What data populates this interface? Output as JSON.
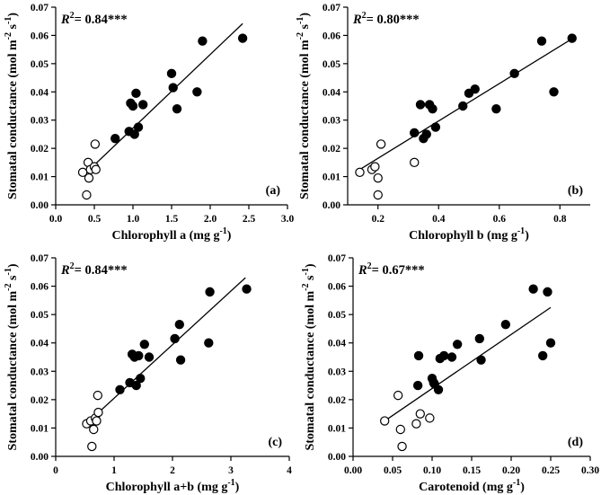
{
  "chart_data": [
    {
      "type": "scatter",
      "panel_label": "(a)",
      "r2_label": "R",
      "r2_value": "= 0.84***",
      "xlabel": "Chlorophyll a (mg g",
      "xlabel_exp": "-1",
      "xlabel_end": ")",
      "ylabel": "Stomatal conductance (mol m",
      "ylabel_exp1": "-2",
      "ylabel_mid": " s",
      "ylabel_exp2": "-1",
      "ylabel_end": ")",
      "xlim": [
        0,
        3.0
      ],
      "ylim": [
        0,
        0.07
      ],
      "xticks": [
        "0.0",
        "0.5",
        "1.0",
        "1.5",
        "2.0",
        "2.5",
        "3.0"
      ],
      "yticks": [
        "0.00",
        "0.01",
        "0.02",
        "0.03",
        "0.04",
        "0.05",
        "0.06",
        "0.07"
      ],
      "fit": [
        [
          0.4,
          0.0115
        ],
        [
          2.42,
          0.0642
        ]
      ],
      "series": [
        {
          "marker": "filled",
          "x": [
            0.77,
            0.95,
            0.97,
            1.0,
            1.02,
            1.04,
            1.07,
            1.13,
            1.5,
            1.52,
            1.57,
            1.83,
            1.9,
            2.42
          ],
          "y": [
            0.0235,
            0.026,
            0.036,
            0.035,
            0.025,
            0.0395,
            0.0275,
            0.0355,
            0.0465,
            0.0415,
            0.034,
            0.04,
            0.058,
            0.059
          ]
        },
        {
          "marker": "open",
          "x": [
            0.35,
            0.4,
            0.42,
            0.43,
            0.45,
            0.5,
            0.52,
            0.51
          ],
          "y": [
            0.0115,
            0.0035,
            0.015,
            0.0095,
            0.0125,
            0.0135,
            0.0125,
            0.0215
          ]
        }
      ]
    },
    {
      "type": "scatter",
      "panel_label": "(b)",
      "r2_label": "R",
      "r2_value": "= 0.80***",
      "xlabel": "Chlorophyll b (mg g",
      "xlabel_exp": "-1",
      "xlabel_end": ")",
      "ylabel": "Stomatal conductance (mol m",
      "ylabel_exp1": "-2",
      "ylabel_mid": " s",
      "ylabel_exp2": "-1",
      "ylabel_end": ")",
      "xlim": [
        0.1,
        0.9
      ],
      "ylim": [
        0,
        0.07
      ],
      "xticks": [
        "0.2",
        "0.4",
        "0.6",
        "0.8"
      ],
      "xtick_values": [
        0.2,
        0.4,
        0.6,
        0.8
      ],
      "yticks": [
        "0.00",
        "0.01",
        "0.02",
        "0.03",
        "0.04",
        "0.05",
        "0.06",
        "0.07"
      ],
      "fit": [
        [
          0.14,
          0.0125
        ],
        [
          0.84,
          0.0588
        ]
      ],
      "series": [
        {
          "marker": "filled",
          "x": [
            0.32,
            0.34,
            0.35,
            0.36,
            0.37,
            0.38,
            0.39,
            0.48,
            0.5,
            0.52,
            0.59,
            0.65,
            0.74,
            0.78,
            0.84
          ],
          "y": [
            0.0255,
            0.0355,
            0.0235,
            0.025,
            0.0355,
            0.034,
            0.0275,
            0.035,
            0.0395,
            0.041,
            0.034,
            0.0465,
            0.058,
            0.04,
            0.059
          ]
        },
        {
          "marker": "open",
          "x": [
            0.14,
            0.18,
            0.19,
            0.2,
            0.21,
            0.32,
            0.2
          ],
          "y": [
            0.0115,
            0.0125,
            0.0135,
            0.0095,
            0.0215,
            0.015,
            0.0035
          ]
        }
      ]
    },
    {
      "type": "scatter",
      "panel_label": "(c)",
      "r2_label": "R",
      "r2_value": "= 0.84***",
      "xlabel": "Chlorophyll a+b (mg g",
      "xlabel_exp": "-1",
      "xlabel_end": ")",
      "ylabel": "Stomatal conductance (mol m",
      "ylabel_exp1": "-2",
      "ylabel_mid": " s",
      "ylabel_exp2": "-1",
      "ylabel_end": ")",
      "xlim": [
        0,
        4
      ],
      "ylim": [
        0,
        0.07
      ],
      "xticks": [
        "0",
        "1",
        "2",
        "3",
        "4"
      ],
      "yticks": [
        "0.00",
        "0.01",
        "0.02",
        "0.03",
        "0.04",
        "0.05",
        "0.06",
        "0.07"
      ],
      "fit": [
        [
          0.55,
          0.012
        ],
        [
          3.25,
          0.063
        ]
      ],
      "series": [
        {
          "marker": "filled",
          "x": [
            1.1,
            1.27,
            1.31,
            1.35,
            1.38,
            1.42,
            1.45,
            1.52,
            1.6,
            2.04,
            2.12,
            2.14,
            2.62,
            2.64,
            3.27
          ],
          "y": [
            0.0235,
            0.026,
            0.036,
            0.035,
            0.025,
            0.0355,
            0.0275,
            0.0395,
            0.035,
            0.0415,
            0.0465,
            0.034,
            0.04,
            0.058,
            0.059
          ]
        },
        {
          "marker": "open",
          "x": [
            0.53,
            0.6,
            0.65,
            0.68,
            0.7,
            0.73,
            0.62,
            0.72
          ],
          "y": [
            0.0115,
            0.0125,
            0.0095,
            0.0135,
            0.0125,
            0.0155,
            0.0035,
            0.0215
          ]
        }
      ]
    },
    {
      "type": "scatter",
      "panel_label": "(d)",
      "r2_label": "R",
      "r2_value": "= 0.67***",
      "xlabel": "Carotenoid (mg g",
      "xlabel_exp": "-1",
      "xlabel_end": ")",
      "ylabel": "Stomatal conductance (mol m",
      "ylabel_exp1": "-2",
      "ylabel_mid": " s",
      "ylabel_exp2": "-1",
      "ylabel_end": ")",
      "xlim": [
        0,
        0.3
      ],
      "ylim": [
        0,
        0.07
      ],
      "xticks": [
        "0.00",
        "0.05",
        "0.10",
        "0.15",
        "0.20",
        "0.25",
        "0.30"
      ],
      "yticks": [
        "0.00",
        "0.01",
        "0.02",
        "0.03",
        "0.04",
        "0.05",
        "0.06",
        "0.07"
      ],
      "fit": [
        [
          0.04,
          0.0125
        ],
        [
          0.25,
          0.0525
        ]
      ],
      "series": [
        {
          "marker": "filled",
          "x": [
            0.082,
            0.083,
            0.1,
            0.102,
            0.103,
            0.108,
            0.11,
            0.115,
            0.125,
            0.132,
            0.16,
            0.162,
            0.193,
            0.228,
            0.24,
            0.246,
            0.25
          ],
          "y": [
            0.025,
            0.0355,
            0.0275,
            0.026,
            0.0255,
            0.0235,
            0.0345,
            0.0355,
            0.035,
            0.0395,
            0.0415,
            0.034,
            0.0465,
            0.059,
            0.0355,
            0.058,
            0.04
          ]
        },
        {
          "marker": "open",
          "x": [
            0.04,
            0.057,
            0.06,
            0.062,
            0.08,
            0.085,
            0.097
          ],
          "y": [
            0.0125,
            0.0215,
            0.0095,
            0.0035,
            0.0115,
            0.015,
            0.0135
          ]
        }
      ]
    }
  ]
}
